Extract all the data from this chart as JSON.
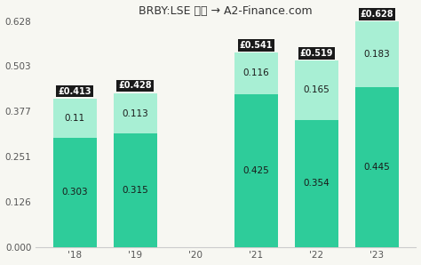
{
  "categories": [
    "'18",
    "'19",
    "'20",
    "'21",
    "'22",
    "'23"
  ],
  "bottom_values": [
    0.303,
    0.315,
    0.0,
    0.425,
    0.354,
    0.445
  ],
  "top_values": [
    0.11,
    0.113,
    0.0,
    0.116,
    0.165,
    0.183
  ],
  "totals": [
    0.413,
    0.428,
    0.0,
    0.541,
    0.519,
    0.628
  ],
  "bottom_color": "#2ecc9a",
  "top_color": "#a8efd4",
  "background_color": "#f7f7f2",
  "bar_width": 0.72,
  "ylim": [
    0.0,
    0.628
  ],
  "yticks": [
    0.0,
    0.126,
    0.251,
    0.377,
    0.503,
    0.628
  ],
  "label_color": "#1a1a1a",
  "total_box_color": "#1a1a1a",
  "total_text_color": "#ffffff",
  "title_fontsize": 9,
  "tick_fontsize": 7.5,
  "bar_label_fontsize": 7.5,
  "total_label_fontsize": 7
}
